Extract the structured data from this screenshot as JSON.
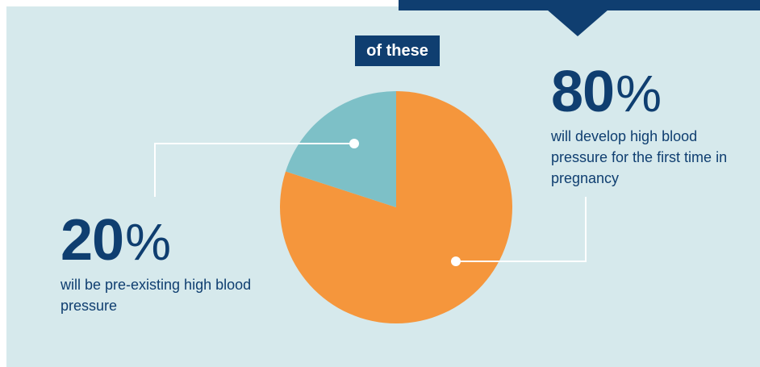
{
  "chart_data": {
    "type": "pie",
    "title": "of these",
    "slices": [
      {
        "label": "will develop high blood pressure for the first time in pregnancy",
        "value": 80,
        "color": "#f5963c"
      },
      {
        "label": "will be pre-existing high blood pressure",
        "value": 20,
        "color": "#7dc0c7"
      }
    ]
  },
  "callouts": [
    {
      "number": "80",
      "unit": "%",
      "text": "will develop high blood pressure for the first time in pregnancy"
    },
    {
      "number": "20",
      "unit": "%",
      "text": "will be pre-existing high blood pressure"
    }
  ],
  "colors": {
    "navy": "#0f3e70",
    "panel": "#d6e9ec",
    "leader": "#ffffff"
  }
}
